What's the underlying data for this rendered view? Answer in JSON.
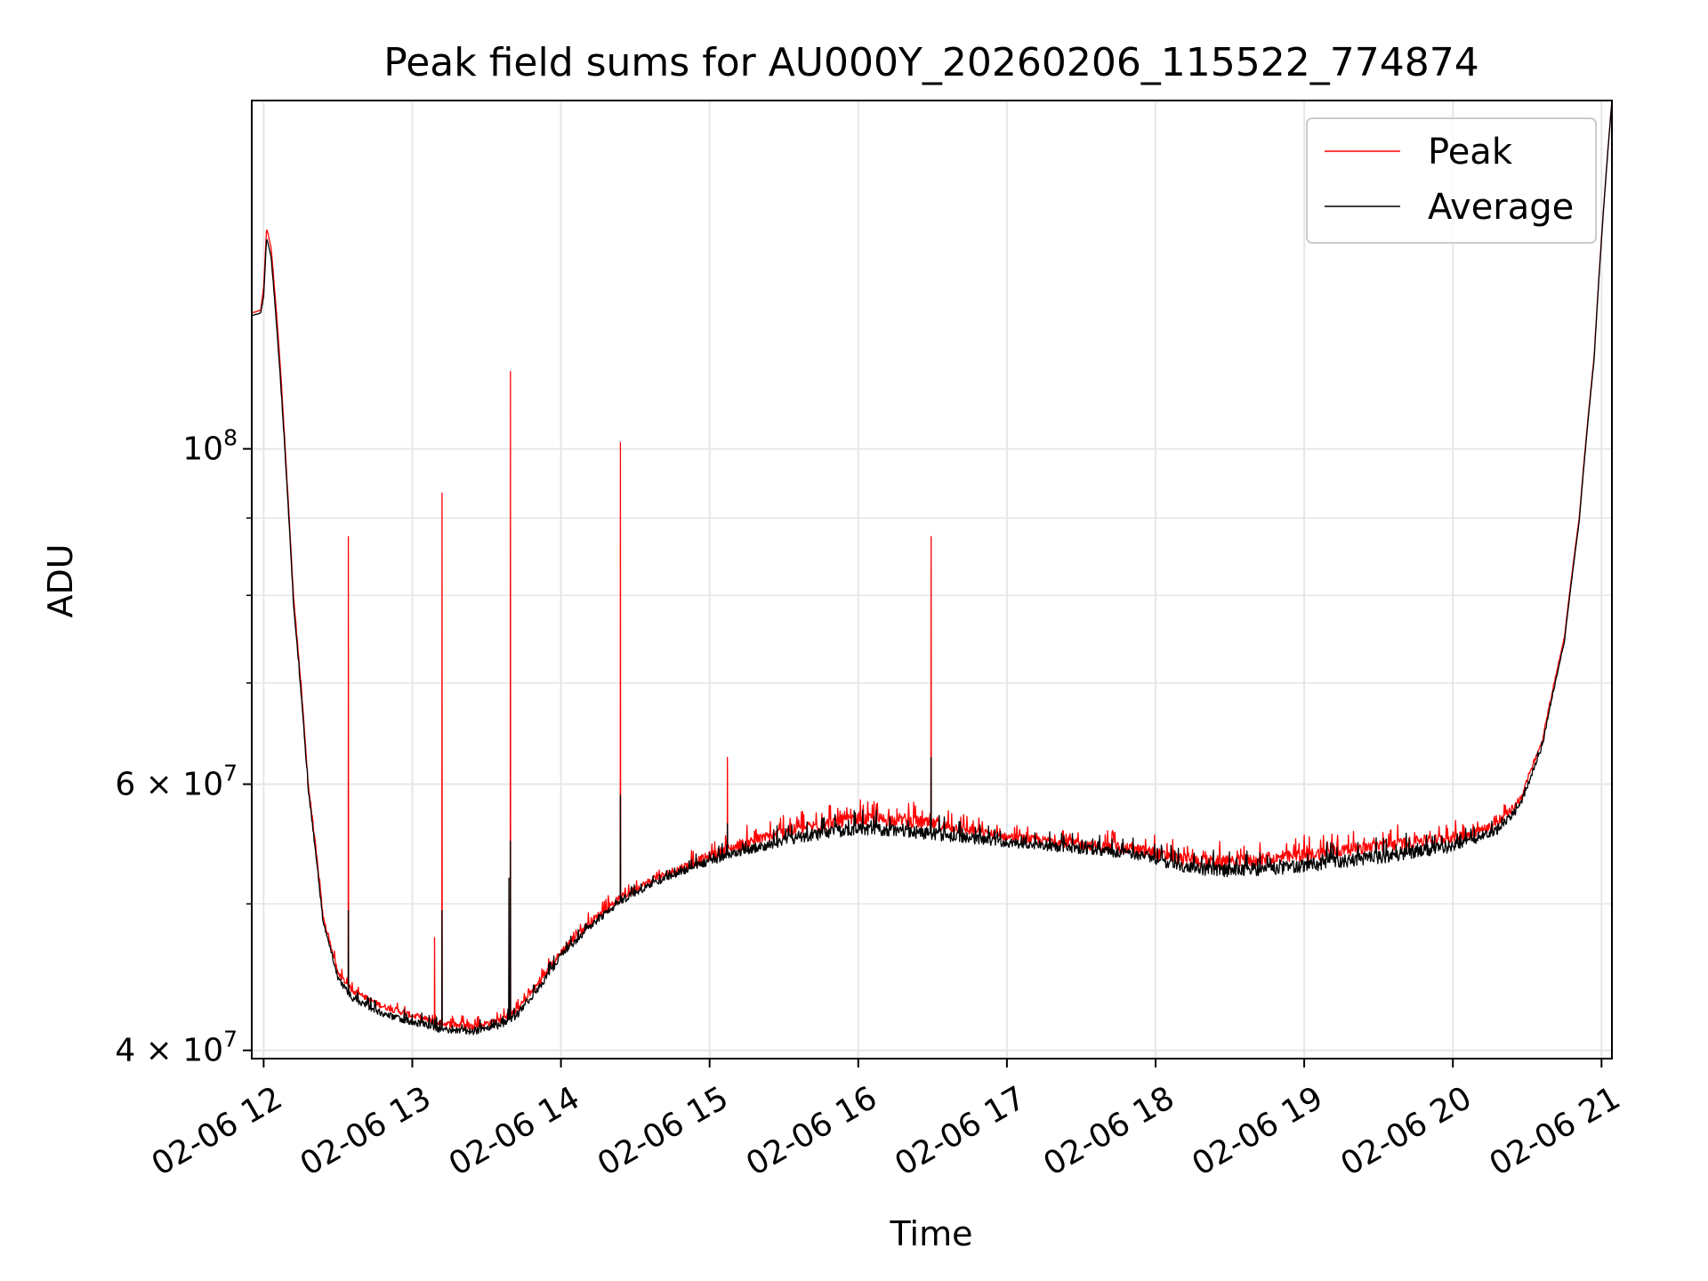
{
  "chart_data": {
    "type": "line",
    "title": "Peak field sums for AU000Y_20260206_115522_774874",
    "xlabel": "Time",
    "ylabel": "ADU",
    "yscale": "log",
    "grid": true,
    "legend_position": "top-right",
    "xlim": [
      11.92,
      21.07
    ],
    "ylim": [
      39500000,
      170000000
    ],
    "x_ticks": [
      {
        "value": 12,
        "label": "02-06 12"
      },
      {
        "value": 13,
        "label": "02-06 13"
      },
      {
        "value": 14,
        "label": "02-06 14"
      },
      {
        "value": 15,
        "label": "02-06 15"
      },
      {
        "value": 16,
        "label": "02-06 16"
      },
      {
        "value": 17,
        "label": "02-06 17"
      },
      {
        "value": 18,
        "label": "02-06 18"
      },
      {
        "value": 19,
        "label": "02-06 19"
      },
      {
        "value": 20,
        "label": "02-06 20"
      },
      {
        "value": 21,
        "label": "02-06 21"
      }
    ],
    "y_ticks": [
      {
        "value": 40000000,
        "base": "4 × 10",
        "exp": "7"
      },
      {
        "value": 60000000,
        "base": "6 × 10",
        "exp": "7"
      },
      {
        "value": 100000000,
        "base": "10",
        "exp": "8"
      }
    ],
    "y_minor_ticks": [
      50000000,
      70000000,
      80000000,
      90000000
    ],
    "x_unit": "hour of 2026-02-06",
    "series": [
      {
        "name": "Peak",
        "color": "#ff0000",
        "base": [
          [
            11.92,
            123000000
          ],
          [
            11.98,
            123500000
          ],
          [
            12.0,
            128000000
          ],
          [
            12.02,
            140000000
          ],
          [
            12.05,
            136000000
          ],
          [
            12.1,
            118000000
          ],
          [
            12.15,
            98000000
          ],
          [
            12.2,
            80000000
          ],
          [
            12.3,
            60000000
          ],
          [
            12.4,
            49000000
          ],
          [
            12.5,
            45000000
          ],
          [
            12.6,
            43800000
          ],
          [
            12.8,
            42800000
          ],
          [
            13.0,
            42200000
          ],
          [
            13.2,
            41700000
          ],
          [
            13.4,
            41500000
          ],
          [
            13.6,
            41900000
          ],
          [
            13.7,
            42500000
          ],
          [
            13.8,
            43700000
          ],
          [
            13.9,
            45000000
          ],
          [
            14.0,
            46500000
          ],
          [
            14.2,
            48700000
          ],
          [
            14.4,
            50500000
          ],
          [
            14.6,
            51800000
          ],
          [
            14.8,
            52800000
          ],
          [
            15.0,
            53800000
          ],
          [
            15.2,
            54700000
          ],
          [
            15.5,
            55800000
          ],
          [
            15.8,
            56600000
          ],
          [
            16.0,
            56900000
          ],
          [
            16.3,
            56900000
          ],
          [
            16.6,
            56300000
          ],
          [
            17.0,
            55400000
          ],
          [
            17.5,
            54800000
          ],
          [
            17.9,
            54300000
          ],
          [
            18.2,
            53500000
          ],
          [
            18.5,
            53300000
          ],
          [
            18.8,
            53600000
          ],
          [
            19.2,
            54200000
          ],
          [
            19.6,
            54800000
          ],
          [
            19.9,
            55200000
          ],
          [
            20.1,
            55600000
          ],
          [
            20.3,
            56500000
          ],
          [
            20.45,
            58500000
          ],
          [
            20.6,
            64000000
          ],
          [
            20.75,
            75000000
          ],
          [
            20.85,
            90000000
          ],
          [
            20.95,
            115000000
          ],
          [
            21.07,
            170000000
          ]
        ],
        "noise": [
          [
            11.92,
            0.0
          ],
          [
            12.4,
            0.008
          ],
          [
            13.4,
            0.01
          ],
          [
            14.6,
            0.012
          ],
          [
            15.4,
            0.018
          ],
          [
            16.4,
            0.02
          ],
          [
            17.0,
            0.012
          ],
          [
            17.9,
            0.018
          ],
          [
            18.5,
            0.02
          ],
          [
            19.9,
            0.018
          ],
          [
            20.4,
            0.012
          ],
          [
            20.8,
            0.0
          ],
          [
            21.07,
            0.0
          ]
        ],
        "spikes": [
          [
            12.57,
            87500000
          ],
          [
            13.15,
            47500000
          ],
          [
            13.2,
            93500000
          ],
          [
            13.66,
            112500000
          ],
          [
            14.4,
            101000000
          ],
          [
            15.12,
            62500000
          ],
          [
            16.26,
            57800000
          ],
          [
            16.49,
            87500000
          ]
        ]
      },
      {
        "name": "Average",
        "color": "#000000",
        "base": [
          [
            11.92,
            122500000
          ],
          [
            11.98,
            123000000
          ],
          [
            12.0,
            126000000
          ],
          [
            12.02,
            138000000
          ],
          [
            12.05,
            134000000
          ],
          [
            12.1,
            116000000
          ],
          [
            12.15,
            97000000
          ],
          [
            12.2,
            79000000
          ],
          [
            12.3,
            59500000
          ],
          [
            12.4,
            48600000
          ],
          [
            12.5,
            44600000
          ],
          [
            12.6,
            43300000
          ],
          [
            12.8,
            42300000
          ],
          [
            13.0,
            41800000
          ],
          [
            13.2,
            41300000
          ],
          [
            13.4,
            41200000
          ],
          [
            13.6,
            41600000
          ],
          [
            13.7,
            42200000
          ],
          [
            13.8,
            43400000
          ],
          [
            13.9,
            44700000
          ],
          [
            14.0,
            46200000
          ],
          [
            14.2,
            48400000
          ],
          [
            14.4,
            50200000
          ],
          [
            14.6,
            51500000
          ],
          [
            14.8,
            52500000
          ],
          [
            15.0,
            53400000
          ],
          [
            15.2,
            54200000
          ],
          [
            15.5,
            55100000
          ],
          [
            15.8,
            55800000
          ],
          [
            16.0,
            56100000
          ],
          [
            16.3,
            56000000
          ],
          [
            16.6,
            55500000
          ],
          [
            17.0,
            54900000
          ],
          [
            17.5,
            54400000
          ],
          [
            17.9,
            53900000
          ],
          [
            18.2,
            52900000
          ],
          [
            18.5,
            52600000
          ],
          [
            18.8,
            52800000
          ],
          [
            19.2,
            53300000
          ],
          [
            19.6,
            53900000
          ],
          [
            19.9,
            54400000
          ],
          [
            20.1,
            55000000
          ],
          [
            20.3,
            56000000
          ],
          [
            20.45,
            58000000
          ],
          [
            20.6,
            63500000
          ],
          [
            20.75,
            74500000
          ],
          [
            20.85,
            89500000
          ],
          [
            20.95,
            114500000
          ],
          [
            21.07,
            170000000
          ]
        ],
        "noise": [
          [
            11.92,
            0.0
          ],
          [
            12.4,
            0.008
          ],
          [
            13.4,
            0.012
          ],
          [
            14.6,
            0.01
          ],
          [
            15.4,
            0.016
          ],
          [
            16.4,
            0.02
          ],
          [
            17.0,
            0.014
          ],
          [
            17.9,
            0.016
          ],
          [
            18.5,
            0.02
          ],
          [
            19.9,
            0.02
          ],
          [
            20.4,
            0.012
          ],
          [
            20.8,
            0.0
          ],
          [
            21.07,
            0.0
          ]
        ],
        "spikes": [
          [
            12.57,
            49500000
          ],
          [
            13.2,
            49500000
          ],
          [
            13.65,
            52000000
          ],
          [
            13.66,
            55000000
          ],
          [
            14.4,
            59000000
          ],
          [
            15.12,
            56500000
          ],
          [
            16.49,
            62500000
          ]
        ]
      }
    ]
  }
}
